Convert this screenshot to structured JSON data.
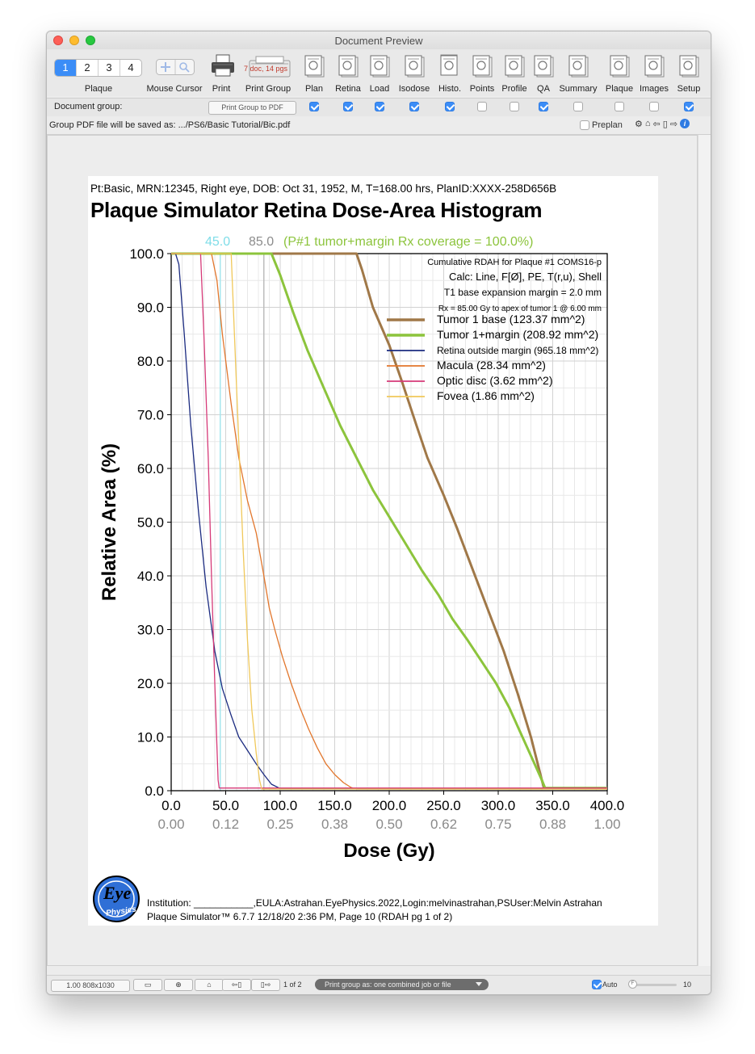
{
  "window": {
    "title": "Document Preview"
  },
  "toolbar": {
    "pages": [
      "1",
      "2",
      "3",
      "4"
    ],
    "active_page": "1",
    "doc_badge": "7 doc, 14 pgs",
    "items": [
      {
        "label": "Plaque",
        "icon": "plaque-segment"
      },
      {
        "label": "Mouse Cursor",
        "icon": "mouse-cursor-icon"
      },
      {
        "label": "Print",
        "icon": "printer-icon"
      },
      {
        "label": "Print Group",
        "icon": "print-group-icon"
      },
      {
        "label": "Plan",
        "icon": "plan-doc-icon"
      },
      {
        "label": "Retina",
        "icon": "retina-doc-icon"
      },
      {
        "label": "Load",
        "icon": "load-doc-icon"
      },
      {
        "label": "Isodose",
        "icon": "isodose-doc-icon"
      },
      {
        "label": "Histo.",
        "icon": "histogram-doc-icon"
      },
      {
        "label": "Points",
        "icon": "points-doc-icon"
      },
      {
        "label": "Profile",
        "icon": "profile-doc-icon"
      },
      {
        "label": "QA",
        "icon": "qa-doc-icon"
      },
      {
        "label": "Summary",
        "icon": "summary-doc-icon"
      },
      {
        "label": "Plaque",
        "icon": "plaque-doc-icon"
      },
      {
        "label": "Images",
        "icon": "images-doc-icon"
      },
      {
        "label": "Setup",
        "icon": "setup-doc-icon"
      }
    ]
  },
  "group_row": {
    "label": "Document group:",
    "button": "Print Group to PDF",
    "checks": [
      true,
      true,
      true,
      true,
      true,
      false,
      false,
      true,
      false,
      false,
      false,
      true
    ]
  },
  "path_row": {
    "text": "Group PDF file will be saved as: .../PS6/Basic Tutorial/Bic.pdf",
    "preplan_label": "Preplan",
    "preplan_checked": false
  },
  "page": {
    "patient_line": "Pt:Basic, MRN:12345, Right eye, DOB: Oct 31, 1952, M, T=168.00 hrs, PlanID:XXXX-258D656B",
    "title": "Plaque Simulator Retina Dose-Area Histogram",
    "footer_line1": "Institution: ___________,EULA:Astrahan.EyePhysics.2022,Login:melvinastrahan,PSUser:Melvin Astrahan",
    "footer_line2": "Plaque Simulator™ 6.7.7 12/18/20 2:36 PM, Page 10 (RDAH pg 1 of 2)",
    "logo_text": "Physics"
  },
  "chart_data": {
    "type": "line",
    "xlabel": "Dose (Gy)",
    "ylabel": "Relative Area (%)",
    "xlim": [
      0,
      400
    ],
    "ylim": [
      0,
      100
    ],
    "x_ticks": [
      "0.0",
      "50.0",
      "100.0",
      "150.0",
      "200.0",
      "250.0",
      "300.0",
      "350.0",
      "400.0"
    ],
    "x_ticks_secondary": [
      "0.00",
      "0.12",
      "0.25",
      "0.38",
      "0.50",
      "0.62",
      "0.75",
      "0.88",
      "1.00"
    ],
    "y_ticks": [
      "0.0",
      "10.0",
      "20.0",
      "30.0",
      "40.0",
      "50.0",
      "60.0",
      "70.0",
      "80.0",
      "90.0",
      "100.0"
    ],
    "header": {
      "marker1": "45.0",
      "marker2": "85.0",
      "coverage": "(P#1 tumor+margin Rx coverage = 100.0%)",
      "marker1_color": "#7fdde8",
      "marker2_color": "#8c8c8c",
      "coverage_color": "#8cc43c"
    },
    "reference_lines": [
      {
        "x": 45,
        "color": "#a6e6ee"
      },
      {
        "x": 85,
        "color": "#bdbdbd"
      }
    ],
    "info": [
      "Cumulative RDAH for Plaque #1 COMS16-p",
      "Calc: Line, F[Ø], PE, T(r,u), Shell",
      "T1  base expansion margin = 2.0 mm",
      "Rx = 85.00 Gy to apex of tumor 1 @ 6.00 mm"
    ],
    "grid": true,
    "legend_position": "top-right",
    "series": [
      {
        "name": "Tumor 1 base (123.37 mm^2)",
        "color": "#a07848",
        "width": 3,
        "x": [
          0,
          170,
          175,
          185,
          200,
          212,
          225,
          235,
          250,
          262,
          275,
          290,
          305,
          318,
          330,
          340,
          342,
          400
        ],
        "y": [
          100,
          100,
          97,
          90,
          83,
          76,
          68,
          62,
          55,
          49,
          42,
          34,
          26,
          18,
          10,
          2,
          0.5,
          0.5
        ]
      },
      {
        "name": "Tumor 1+margin (208.92 mm^2)",
        "color": "#8cc43c",
        "width": 3,
        "x": [
          0,
          92,
          100,
          112,
          125,
          140,
          155,
          170,
          185,
          200,
          215,
          230,
          245,
          258,
          272,
          285,
          298,
          310,
          320,
          330,
          340,
          343,
          400
        ],
        "y": [
          100,
          100,
          96,
          89,
          82,
          75,
          68,
          62,
          56,
          51,
          46,
          41,
          36.5,
          32,
          28,
          24,
          20,
          15.5,
          11,
          6.5,
          2,
          0.5,
          0.5
        ]
      },
      {
        "name": "Retina outside margin (965.18 mm^2)",
        "color": "#1b2b80",
        "width": 1.3,
        "x": [
          0,
          4,
          7,
          12,
          18,
          25,
          32,
          40,
          47,
          55,
          62,
          70,
          78,
          85,
          92,
          100,
          400
        ],
        "y": [
          100,
          100,
          98,
          85,
          68,
          52,
          38,
          26,
          19,
          14,
          10,
          7.5,
          5,
          3,
          1.2,
          0.4,
          0.4
        ]
      },
      {
        "name": "Macula (28.34 mm^2)",
        "color": "#e2762c",
        "width": 1.3,
        "x": [
          0,
          37,
          42,
          47,
          55,
          62,
          70,
          78,
          85,
          90,
          95,
          102,
          110,
          118,
          126,
          134,
          142,
          150,
          158,
          165,
          170,
          400
        ],
        "y": [
          100,
          100,
          95,
          85,
          72,
          62,
          54,
          48,
          40,
          34,
          30,
          25,
          20,
          15.5,
          11.5,
          8,
          5,
          3,
          1.5,
          0.6,
          0.3,
          0.3
        ]
      },
      {
        "name": "Optic disc (3.62 mm^2)",
        "color": "#d63a78",
        "width": 1.3,
        "x": [
          0,
          27,
          30,
          34,
          37,
          40,
          42,
          43,
          44,
          400
        ],
        "y": [
          100,
          100,
          85,
          62,
          40,
          20,
          8,
          2,
          0.5,
          0.5
        ]
      },
      {
        "name": "Fovea (1.86 mm^2)",
        "color": "#f0c85a",
        "width": 1.3,
        "x": [
          0,
          55,
          58,
          62,
          66,
          70,
          74,
          78,
          81,
          83,
          400
        ],
        "y": [
          100,
          100,
          85,
          65,
          45,
          28,
          15,
          7,
          2,
          0.3,
          0.3
        ]
      }
    ]
  },
  "bottombar": {
    "zoom": "1.00 808x1030",
    "page_count": "1 of 2",
    "print_group": "Print group as: one combined job or file",
    "auto_label": "Auto",
    "slider_knob": "F",
    "slider_value": "10"
  }
}
